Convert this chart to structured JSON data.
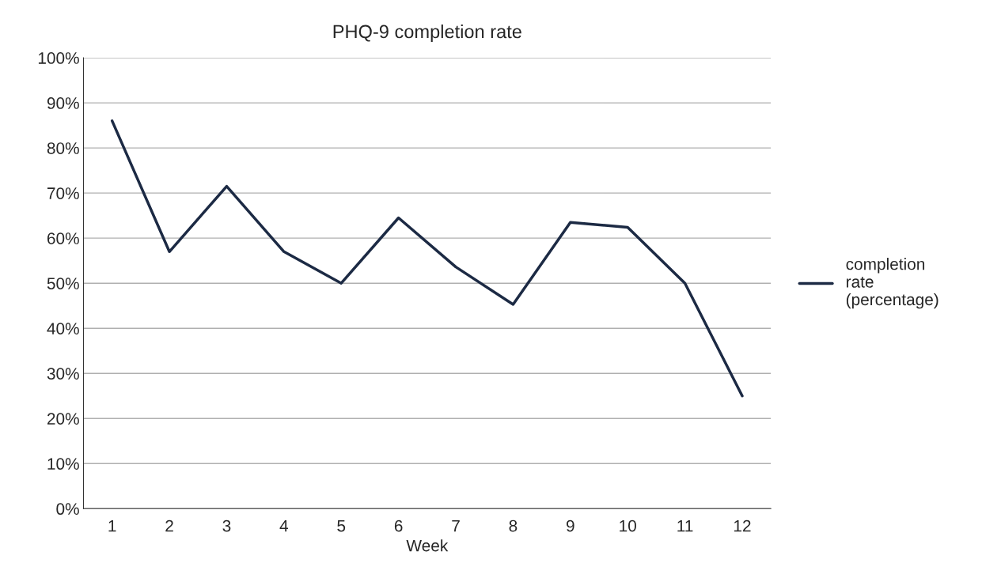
{
  "chart_data": {
    "type": "line",
    "title": "PHQ-9 completion rate",
    "xlabel": "Week",
    "categories": [
      "1",
      "2",
      "3",
      "4",
      "5",
      "6",
      "7",
      "8",
      "9",
      "10",
      "11",
      "12"
    ],
    "series": [
      {
        "name": "completion\nrate\n(percentage)",
        "color": "#1c2a44",
        "values": [
          86,
          57,
          71.5,
          57,
          50,
          64.5,
          53.6,
          45.3,
          63.5,
          62.4,
          50,
          25
        ]
      }
    ],
    "ylim": [
      0,
      100
    ],
    "yticks": [
      {
        "value": 0,
        "label": "0%"
      },
      {
        "value": 10,
        "label": "10%"
      },
      {
        "value": 20,
        "label": "20%"
      },
      {
        "value": 30,
        "label": "30%"
      },
      {
        "value": 40,
        "label": "40%"
      },
      {
        "value": 50,
        "label": "50%"
      },
      {
        "value": 60,
        "label": "60%"
      },
      {
        "value": 70,
        "label": "70%"
      },
      {
        "value": 80,
        "label": "80%"
      },
      {
        "value": 90,
        "label": "90%"
      },
      {
        "value": 100,
        "label": "100%"
      }
    ],
    "grid": "y",
    "legend": "right",
    "marker": "none",
    "line_style": "solid"
  }
}
